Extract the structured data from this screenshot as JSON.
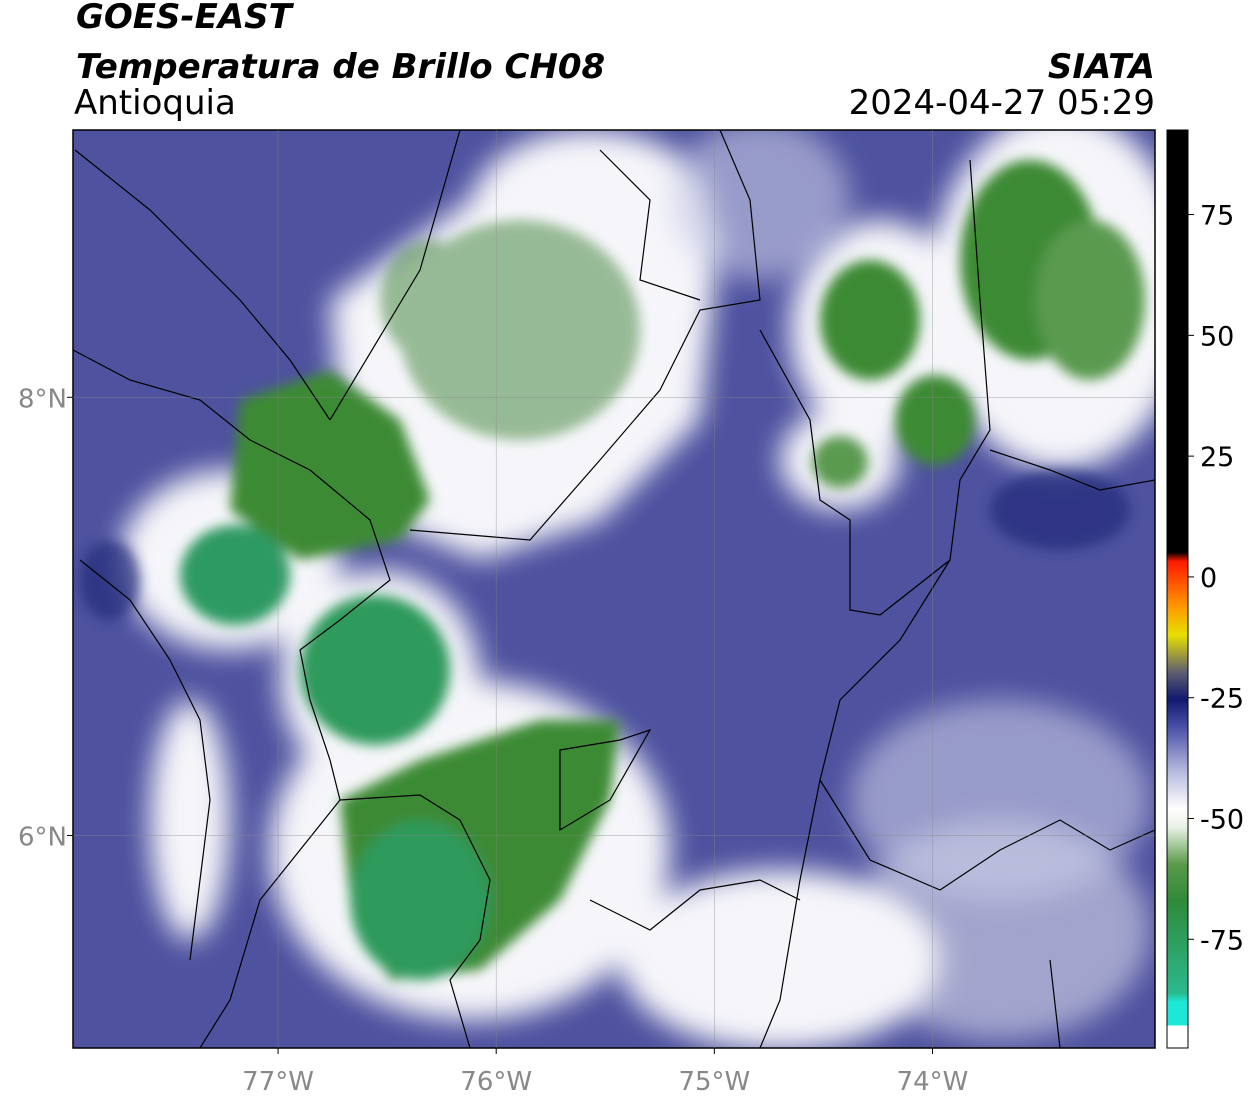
{
  "header": {
    "satellite": "GOES-EAST",
    "product": "Temperatura de Brillo CH08",
    "region": "Antioquia",
    "agency": "SIATA",
    "timestamp": "2024-04-27 05:29"
  },
  "map": {
    "xlim": [
      -77.94,
      -72.98
    ],
    "ylim": [
      5.03,
      9.22
    ],
    "xticks": [
      {
        "value": -77,
        "label": "77°W"
      },
      {
        "value": -76,
        "label": "76°W"
      },
      {
        "value": -75,
        "label": "75°W"
      },
      {
        "value": -74,
        "label": "74°W"
      }
    ],
    "yticks": [
      {
        "value": 8,
        "label": "8°N"
      },
      {
        "value": 6,
        "label": "6°N"
      }
    ],
    "grid": true
  },
  "colorbar": {
    "range": [
      -97.5,
      92.5
    ],
    "ticks": [
      75,
      50,
      25,
      0,
      -25,
      -50,
      -75
    ]
  }
}
